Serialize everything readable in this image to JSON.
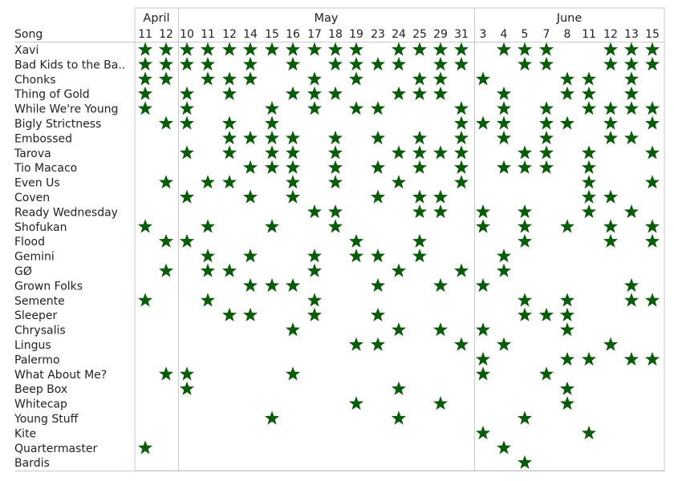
{
  "chart_data": {
    "type": "table",
    "row_header": "Song",
    "mark_icon": "star-icon",
    "mark_color": "#0a5c0a",
    "months": [
      {
        "label": "April",
        "first_col": 0,
        "span": 2
      },
      {
        "label": "May",
        "first_col": 2,
        "span": 14
      },
      {
        "label": "June",
        "first_col": 16,
        "span": 9
      }
    ],
    "days": [
      "11",
      "12",
      "10",
      "11",
      "12",
      "14",
      "15",
      "16",
      "17",
      "18",
      "19",
      "23",
      "24",
      "25",
      "29",
      "31",
      "3",
      "4",
      "5",
      "7",
      "8",
      "11",
      "12",
      "13",
      "15"
    ],
    "songs": [
      "Xavi",
      "Bad Kids to the Ba..",
      "Chonks",
      "Thing of Gold",
      "While We're Young",
      "Bigly Strictness",
      "Embossed",
      "Tarova",
      "Tio Macaco",
      "Even Us",
      "Coven",
      "Ready Wednesday",
      "Shofukan",
      "Flood",
      "Gemini",
      "GØ",
      "Grown Folks",
      "Semente",
      "Sleeper",
      "Chrysalis",
      "Lingus",
      "Palermo",
      "What About Me?",
      "Beep Box",
      "Whitecap",
      "Young Stuff",
      "Kite",
      "Quartermaster",
      "Bardis"
    ],
    "played": [
      [
        0,
        1,
        2,
        3,
        4,
        5,
        6,
        7,
        8,
        9,
        10,
        12,
        13,
        14,
        15,
        17,
        18,
        19,
        22,
        23,
        24
      ],
      [
        0,
        1,
        2,
        3,
        5,
        7,
        9,
        10,
        11,
        12,
        14,
        15,
        18,
        19,
        22,
        23,
        24
      ],
      [
        0,
        1,
        3,
        4,
        5,
        8,
        10,
        13,
        14,
        16,
        20,
        21,
        23
      ],
      [
        0,
        2,
        4,
        7,
        8,
        9,
        12,
        13,
        14,
        17,
        20,
        21,
        23
      ],
      [
        0,
        2,
        6,
        8,
        10,
        11,
        15,
        17,
        19,
        21,
        22,
        23,
        24
      ],
      [
        1,
        2,
        4,
        6,
        15,
        16,
        17,
        19,
        20,
        22,
        24
      ],
      [
        4,
        5,
        6,
        7,
        9,
        11,
        13,
        15,
        17,
        19,
        22,
        23
      ],
      [
        2,
        4,
        6,
        7,
        9,
        12,
        13,
        14,
        15,
        18,
        19,
        21,
        24
      ],
      [
        5,
        6,
        7,
        9,
        11,
        13,
        15,
        17,
        18,
        19,
        21
      ],
      [
        1,
        3,
        4,
        7,
        9,
        12,
        15,
        21,
        24
      ],
      [
        2,
        5,
        7,
        11,
        13,
        14,
        21,
        22
      ],
      [
        8,
        9,
        13,
        14,
        16,
        18,
        21,
        23
      ],
      [
        0,
        3,
        6,
        9,
        16,
        18,
        20,
        22,
        24
      ],
      [
        1,
        2,
        10,
        13,
        18,
        22,
        24
      ],
      [
        3,
        5,
        8,
        10,
        11,
        13,
        17
      ],
      [
        1,
        3,
        4,
        8,
        12,
        15,
        17
      ],
      [
        5,
        6,
        7,
        11,
        14,
        16,
        23
      ],
      [
        0,
        3,
        8,
        18,
        20,
        23,
        24
      ],
      [
        4,
        5,
        8,
        11,
        18,
        19,
        20
      ],
      [
        7,
        12,
        14,
        16,
        20
      ],
      [
        10,
        11,
        15,
        17,
        22
      ],
      [
        16,
        20,
        21,
        23,
        24
      ],
      [
        1,
        2,
        7,
        16,
        19
      ],
      [
        2,
        12,
        20
      ],
      [
        10,
        14,
        20
      ],
      [
        6,
        12,
        18
      ],
      [
        16,
        21
      ],
      [
        0,
        17
      ],
      [
        18
      ]
    ]
  }
}
